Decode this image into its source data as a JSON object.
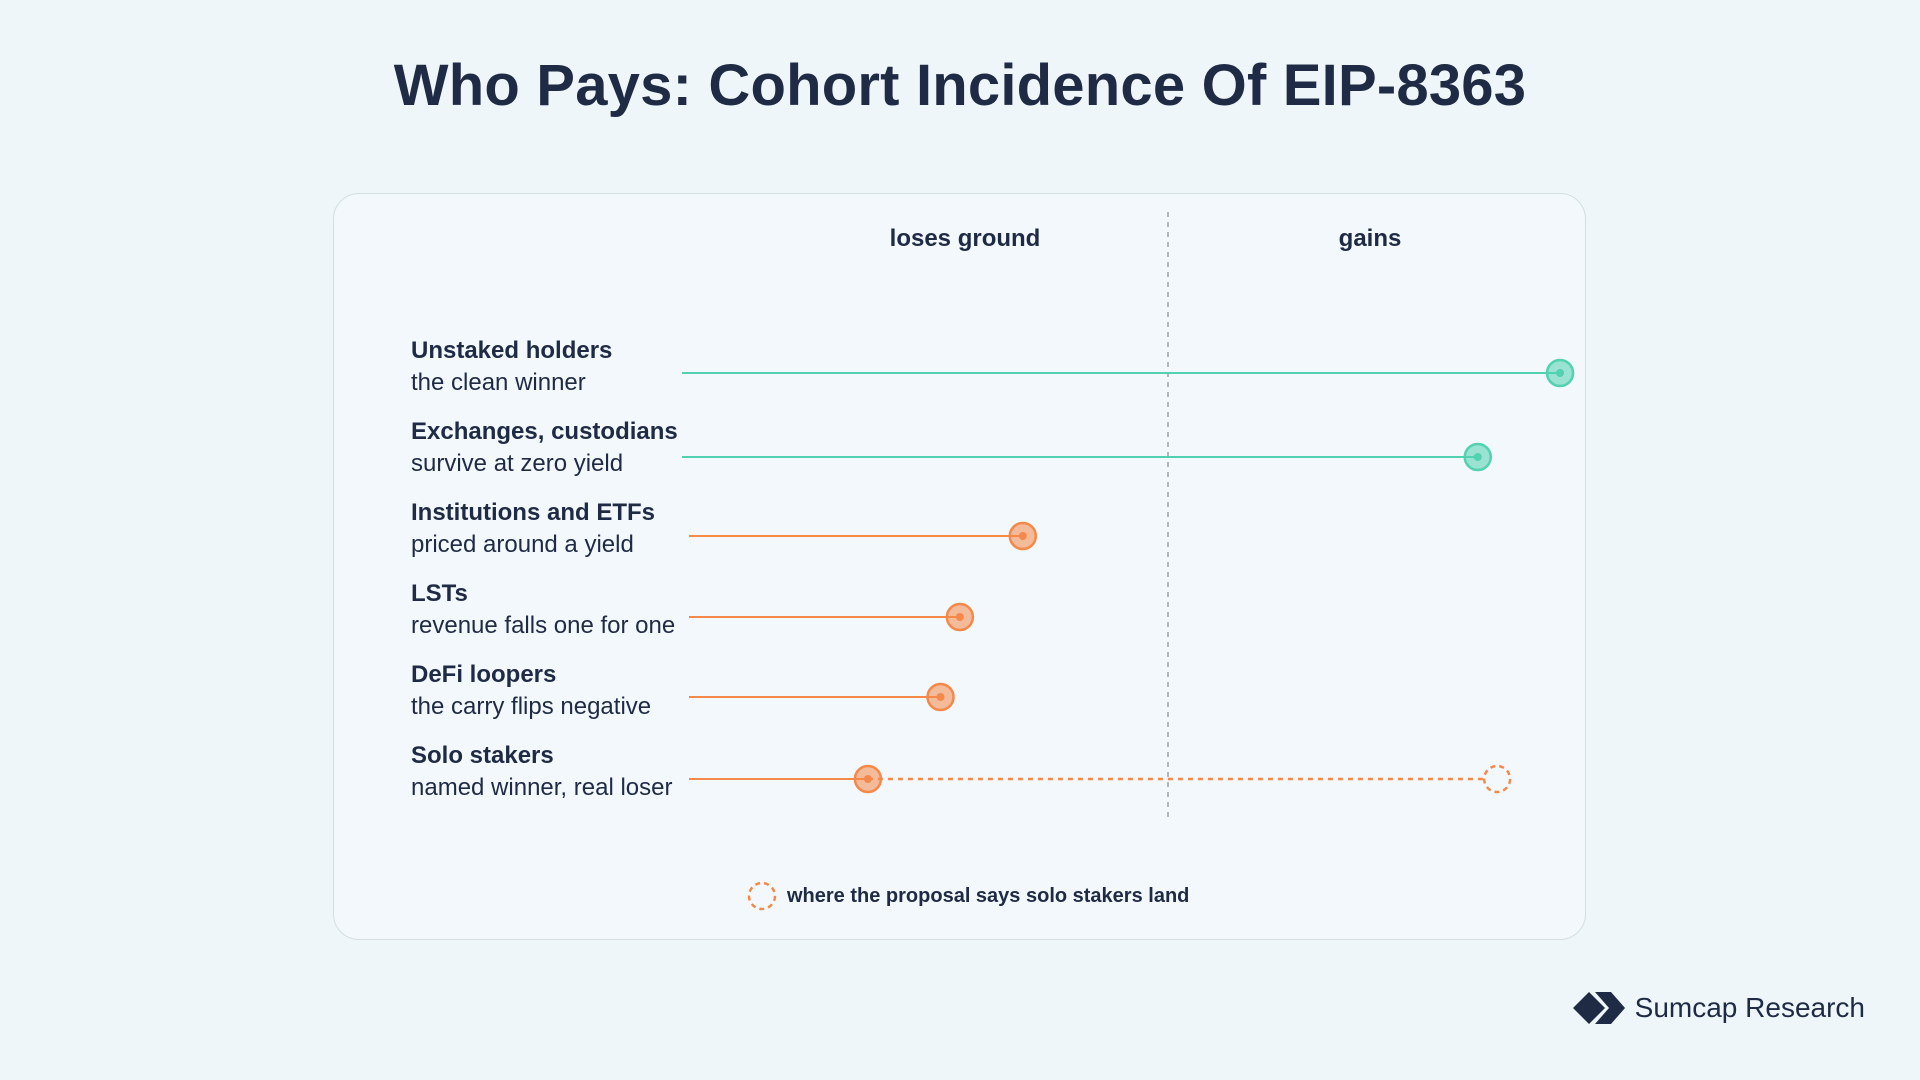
{
  "title": "Who Pays: Cohort Incidence Of EIP-8363",
  "chart_data": {
    "type": "dot-lollipop",
    "axis": {
      "left_label": "loses ground",
      "right_label": "gains"
    },
    "rows": [
      {
        "name": "Unstaked holders",
        "description": "the clean winner",
        "value": 0.81,
        "direction": "gain"
      },
      {
        "name": "Exchanges, custodians",
        "description": "survive at zero yield",
        "value": 0.64,
        "direction": "gain"
      },
      {
        "name": "Institutions and ETFs",
        "description": "priced around a yield",
        "value": -0.3,
        "direction": "loss"
      },
      {
        "name": "LSTs",
        "description": "revenue falls one for one",
        "value": -0.43,
        "direction": "loss"
      },
      {
        "name": "DeFi loopers",
        "description": "the carry flips negative",
        "value": -0.47,
        "direction": "loss"
      },
      {
        "name": "Solo stakers",
        "description": "named winner, real loser",
        "value": -0.62,
        "direction": "loss",
        "claimed_value": 0.68
      }
    ],
    "legend": "where the proposal says solo stakers land",
    "colors": {
      "gain": "#52d2b0",
      "loss": "#f5894a",
      "divider": "#9aa3ab"
    }
  },
  "brand": {
    "name": "Sumcap Research"
  }
}
